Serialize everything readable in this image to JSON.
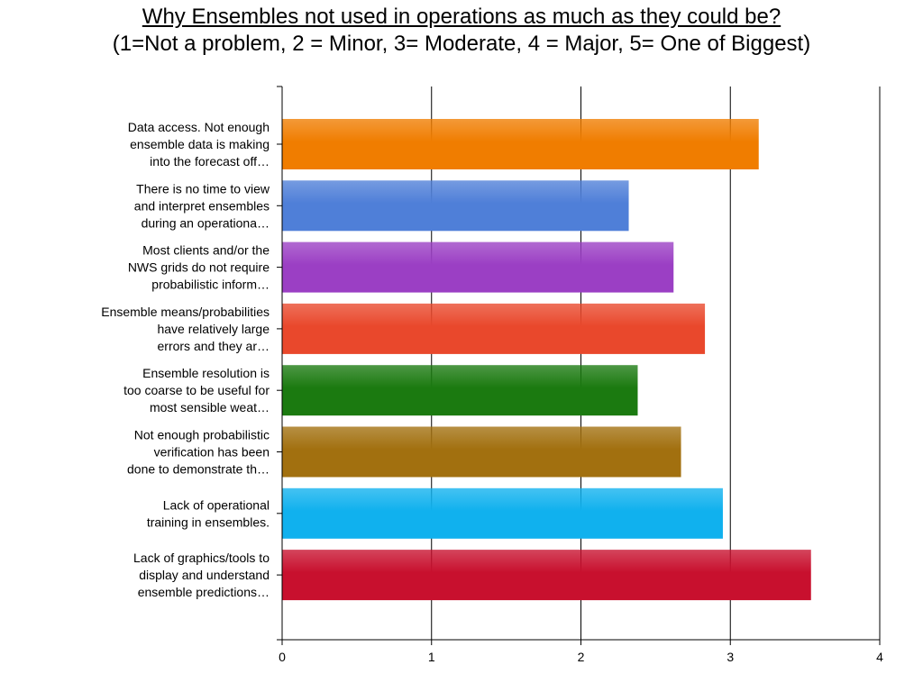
{
  "chart_data": {
    "type": "bar",
    "orientation": "horizontal",
    "title": "Why Ensembles not used in operations as much as they could be?",
    "subtitle": "(1=Not a problem, 2 = Minor, 3= Moderate, 4 = Major, 5= One of Biggest)",
    "categories": [
      [
        "Data access. Not enough",
        "ensemble data is making",
        "into the forecast off…"
      ],
      [
        "There is no time to view",
        "and interpret ensembles",
        "during an operationa…"
      ],
      [
        "Most clients and/or the",
        "NWS grids do not require",
        "probabilistic inform…"
      ],
      [
        "Ensemble means/probabilities",
        "have relatively large",
        "errors and they ar…"
      ],
      [
        "Ensemble resolution is",
        "too coarse to be useful for",
        "most sensible weat…"
      ],
      [
        "Not enough probabilistic",
        "verification has been",
        "done to demonstrate th…"
      ],
      [
        "Lack of operational",
        "training in ensembles."
      ],
      [
        "Lack of graphics/tools to",
        "display and understand",
        "ensemble predictions…"
      ]
    ],
    "values": [
      3.19,
      2.32,
      2.62,
      2.83,
      2.38,
      2.67,
      2.95,
      3.54
    ],
    "colors": [
      "#f07d00",
      "#4f7fd8",
      "#9b3fc4",
      "#e9482c",
      "#1b7a10",
      "#a2700f",
      "#10b1ee",
      "#c8102e"
    ],
    "xlim": [
      0,
      4
    ],
    "xticks": [
      "0",
      "1",
      "2",
      "3",
      "4"
    ],
    "grid": true,
    "legend": "none"
  }
}
